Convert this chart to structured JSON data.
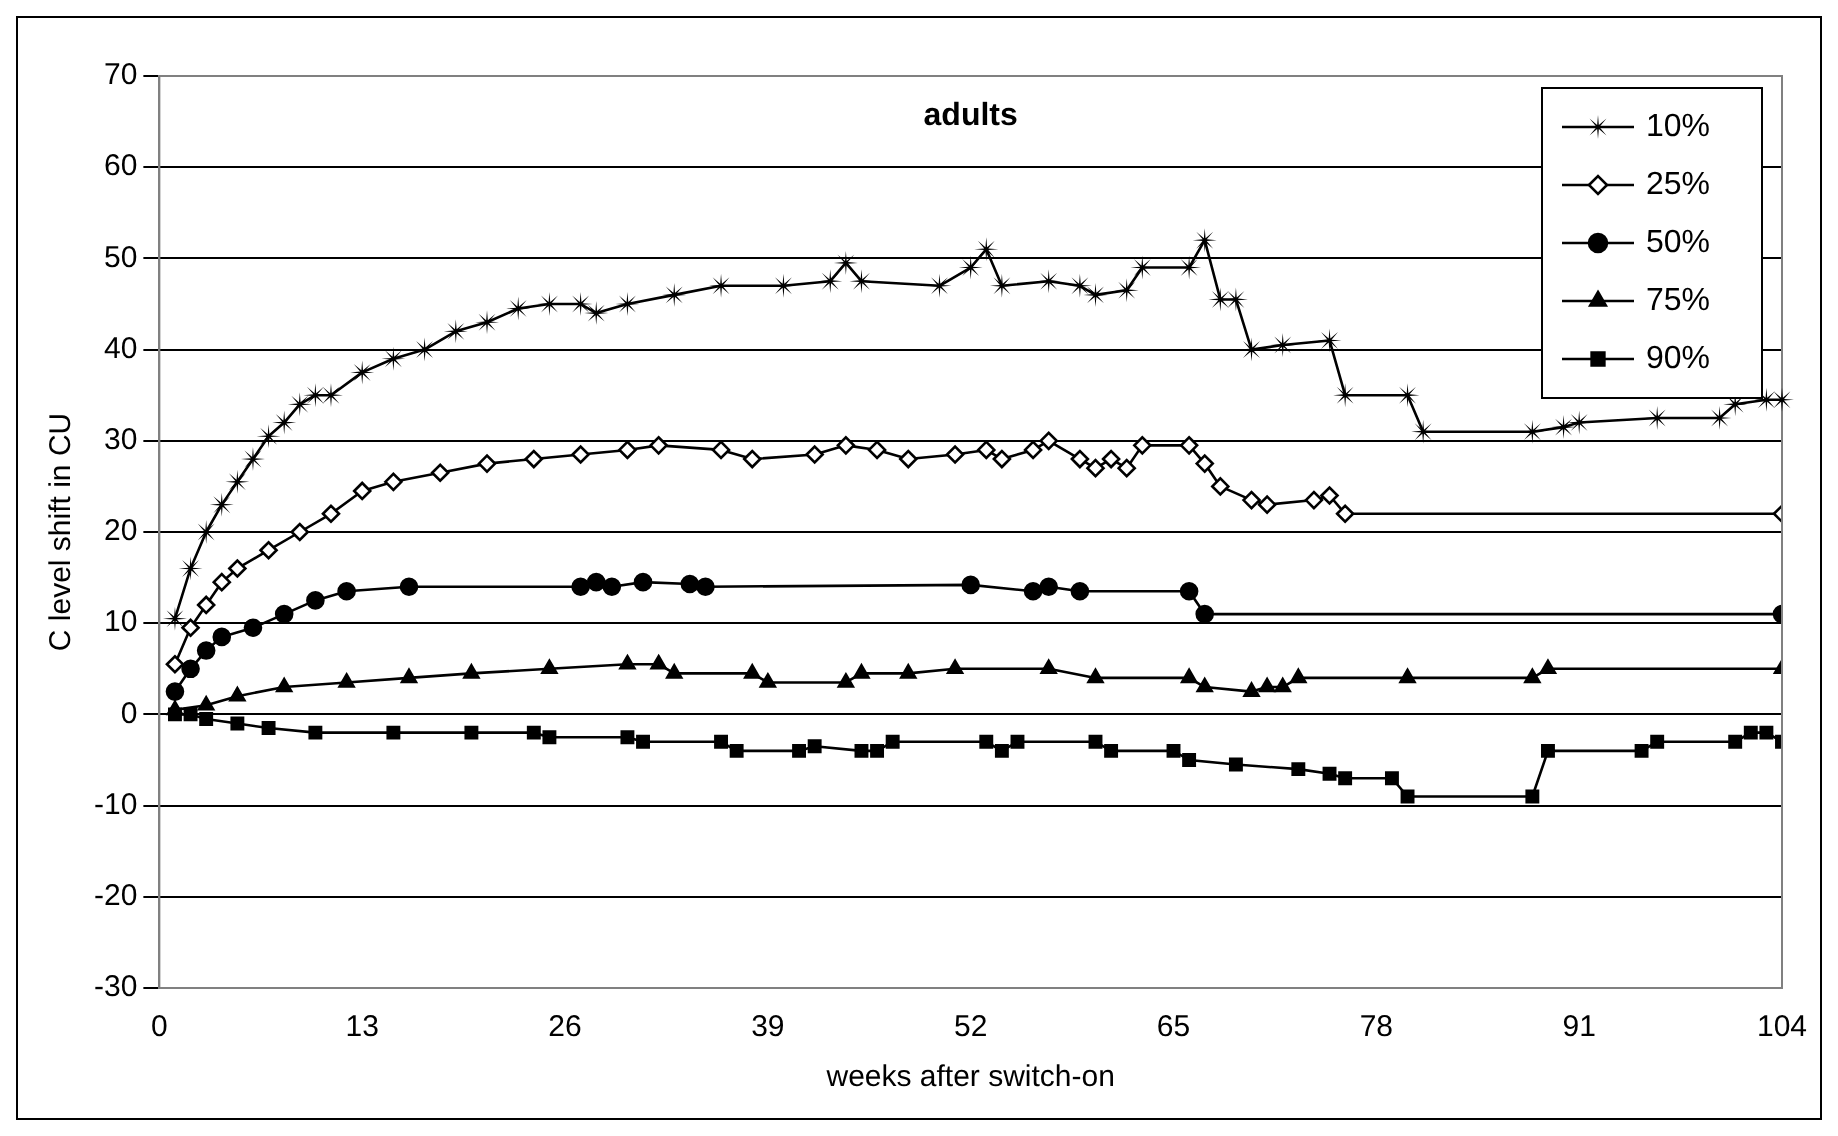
{
  "chart_data": {
    "type": "line",
    "title": "adults",
    "xlabel": "weeks after switch-on",
    "ylabel": "C level shift in CU",
    "xlim": [
      0,
      104
    ],
    "xticks": [
      0,
      13,
      26,
      39,
      52,
      65,
      78,
      91,
      104
    ],
    "ylim": [
      -30,
      70
    ],
    "yticks": [
      -30,
      -20,
      -10,
      0,
      10,
      20,
      30,
      40,
      50,
      60,
      70
    ],
    "grid": "y",
    "legend": "top right",
    "series": [
      {
        "name": "10%",
        "color": "#000000",
        "marker": "star",
        "x": [
          1,
          2,
          3,
          4,
          5,
          6,
          7,
          8,
          9,
          10,
          11,
          13,
          15,
          17,
          19,
          21,
          23,
          25,
          27,
          28,
          30,
          33,
          36,
          40,
          43,
          44,
          45,
          50,
          52,
          53,
          54,
          57,
          59,
          60,
          62,
          63,
          66,
          67,
          68,
          69,
          70,
          72,
          75,
          76,
          80,
          81,
          88,
          90,
          91,
          96,
          100,
          101,
          103,
          104
        ],
        "values": [
          10.5,
          16,
          20,
          23,
          25.5,
          28,
          30.5,
          32,
          34,
          35,
          35,
          37.5,
          39,
          40,
          42,
          43,
          44.5,
          45,
          45,
          44,
          45,
          46,
          47,
          47,
          47.5,
          49.5,
          47.5,
          47,
          49,
          51,
          47,
          47.5,
          47,
          46,
          46.5,
          49,
          49,
          52,
          45.5,
          45.5,
          40,
          40.5,
          41,
          35,
          35,
          31,
          31,
          31.5,
          32,
          32.5,
          32.5,
          34,
          34.5,
          34.5
        ]
      },
      {
        "name": "25%",
        "color": "#000000",
        "marker": "diamond",
        "x": [
          1,
          2,
          3,
          4,
          5,
          7,
          9,
          11,
          13,
          15,
          18,
          21,
          24,
          27,
          30,
          32,
          36,
          38,
          42,
          44,
          46,
          48,
          51,
          53,
          54,
          56,
          57,
          59,
          60,
          61,
          62,
          63,
          66,
          67,
          68,
          70,
          71,
          74,
          75,
          76,
          104
        ],
        "values": [
          5.5,
          9.5,
          12,
          14.5,
          16,
          18,
          20,
          22,
          24.5,
          25.5,
          26.5,
          27.5,
          28,
          28.5,
          29,
          29.5,
          29,
          28,
          28.5,
          29.5,
          29,
          28,
          28.5,
          29,
          28,
          29,
          30,
          28,
          27,
          28,
          27,
          29.5,
          29.5,
          27.5,
          25,
          23.5,
          23,
          23.5,
          24,
          22,
          22
        ]
      },
      {
        "name": "50%",
        "color": "#000000",
        "marker": "circle",
        "x": [
          1,
          2,
          3,
          4,
          6,
          8,
          10,
          12,
          16,
          27,
          28,
          29,
          31,
          34,
          35,
          52,
          56,
          57,
          59,
          66,
          67,
          104
        ],
        "values": [
          2.5,
          5,
          7,
          8.5,
          9.5,
          11,
          12.5,
          13.5,
          14,
          14,
          14.5,
          14,
          14.5,
          14.3,
          14,
          14.2,
          13.5,
          14,
          13.5,
          13.5,
          11,
          11
        ]
      },
      {
        "name": "75%",
        "color": "#000000",
        "marker": "triangle",
        "x": [
          1,
          3,
          5,
          8,
          12,
          16,
          20,
          25,
          30,
          32,
          33,
          38,
          39,
          44,
          45,
          48,
          51,
          57,
          60,
          66,
          67,
          70,
          71,
          72,
          73,
          80,
          88,
          89,
          104
        ],
        "values": [
          0.5,
          1,
          2,
          3,
          3.5,
          4,
          4.5,
          5,
          5.5,
          5.5,
          4.5,
          4.5,
          3.5,
          3.5,
          4.5,
          4.5,
          5,
          5,
          4,
          4,
          3,
          2.5,
          3,
          3,
          4,
          4,
          4,
          5,
          5
        ]
      },
      {
        "name": "90%",
        "color": "#000000",
        "marker": "square",
        "x": [
          1,
          2,
          3,
          5,
          7,
          10,
          15,
          20,
          24,
          25,
          30,
          31,
          36,
          37,
          41,
          42,
          45,
          46,
          47,
          53,
          54,
          55,
          60,
          61,
          65,
          66,
          69,
          73,
          75,
          76,
          79,
          80,
          88,
          89,
          95,
          96,
          101,
          102,
          103,
          104
        ],
        "values": [
          0,
          0,
          -0.5,
          -1,
          -1.5,
          -2,
          -2,
          -2,
          -2,
          -2.5,
          -2.5,
          -3,
          -3,
          -4,
          -4,
          -3.5,
          -4,
          -4,
          -3,
          -3,
          -4,
          -3,
          -3,
          -4,
          -4,
          -5,
          -5.5,
          -6,
          -6.5,
          -7,
          -7,
          -9,
          -9,
          -4,
          -4,
          -3,
          -3,
          -2,
          -2,
          -3
        ]
      }
    ]
  }
}
